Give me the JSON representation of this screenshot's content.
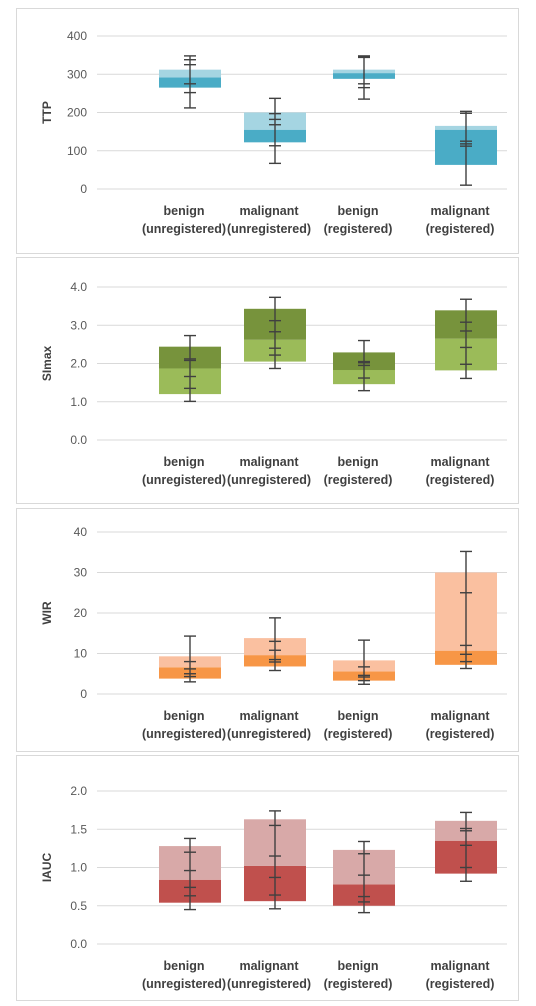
{
  "chart_data": [
    {
      "type": "box",
      "ylabel": "TTP",
      "ylim": [
        0,
        400
      ],
      "yticks": [
        0,
        100,
        200,
        300,
        400
      ],
      "tick_decimals": 0,
      "colors": {
        "lower": "#4aacc6",
        "upper": "#a5d5e2"
      },
      "categories": [
        {
          "line1": "benign",
          "line2": "(unregistered)",
          "q1": 265,
          "median": 292,
          "q3": 312,
          "whisker_low": 212,
          "whisker_high": 348,
          "caps": [
            212,
            252,
            275,
            325,
            338,
            348
          ]
        },
        {
          "line1": "malignant",
          "line2": "(unregistered)",
          "q1": 122,
          "median": 155,
          "q3": 200,
          "whisker_low": 67,
          "whisker_high": 237,
          "caps": [
            67,
            113,
            168,
            182,
            197,
            237
          ]
        },
        {
          "line1": "benign",
          "line2": "(registered)",
          "q1": 288,
          "median": 303,
          "q3": 312,
          "whisker_low": 235,
          "whisker_high": 348,
          "caps": [
            235,
            265,
            275,
            344,
            346,
            348
          ]
        },
        {
          "line1": "malignant",
          "line2": "(registered)",
          "q1": 63,
          "median": 155,
          "q3": 165,
          "whisker_low": 10,
          "whisker_high": 203,
          "caps": [
            10,
            112,
            118,
            125,
            198,
            203
          ]
        }
      ]
    },
    {
      "type": "box",
      "ylabel": "SImax",
      "ylim": [
        0,
        4
      ],
      "yticks": [
        0,
        1,
        2,
        3,
        4
      ],
      "tick_decimals": 1,
      "colors": {
        "lower": "#9bbb59",
        "upper": "#77933c"
      },
      "categories": [
        {
          "line1": "benign",
          "line2": "(unregistered)",
          "q1": 1.2,
          "median": 1.87,
          "q3": 2.44,
          "whisker_low": 1.01,
          "whisker_high": 2.73,
          "caps": [
            1.01,
            1.35,
            1.66,
            2.08,
            2.12,
            2.73
          ]
        },
        {
          "line1": "malignant",
          "line2": "(unregistered)",
          "q1": 2.05,
          "median": 2.62,
          "q3": 3.43,
          "whisker_low": 1.87,
          "whisker_high": 3.73,
          "caps": [
            1.87,
            2.22,
            2.4,
            2.83,
            3.12,
            3.73
          ]
        },
        {
          "line1": "benign",
          "line2": "(registered)",
          "q1": 1.46,
          "median": 1.83,
          "q3": 2.29,
          "whisker_low": 1.29,
          "whisker_high": 2.6,
          "caps": [
            1.29,
            1.62,
            1.95,
            2.02,
            2.05,
            2.6
          ]
        },
        {
          "line1": "malignant",
          "line2": "(registered)",
          "q1": 1.82,
          "median": 2.65,
          "q3": 3.39,
          "whisker_low": 1.61,
          "whisker_high": 3.68,
          "caps": [
            1.61,
            1.98,
            2.42,
            2.85,
            3.08,
            3.68
          ]
        }
      ]
    },
    {
      "type": "box",
      "ylabel": "WIR",
      "ylim": [
        0,
        40
      ],
      "yticks": [
        0,
        10,
        20,
        30,
        40
      ],
      "tick_decimals": 0,
      "colors": {
        "lower": "#f79646",
        "upper": "#fac0a0"
      },
      "categories": [
        {
          "line1": "benign",
          "line2": "(unregistered)",
          "q1": 3.8,
          "median": 6.6,
          "q3": 9.3,
          "whisker_low": 3.0,
          "whisker_high": 14.3,
          "caps": [
            3.0,
            4.3,
            5.0,
            6.2,
            8.0,
            14.3
          ]
        },
        {
          "line1": "malignant",
          "line2": "(unregistered)",
          "q1": 6.8,
          "median": 9.6,
          "q3": 13.8,
          "whisker_low": 5.8,
          "whisker_high": 18.8,
          "caps": [
            5.8,
            7.9,
            8.5,
            10.8,
            13.0,
            18.8
          ]
        },
        {
          "line1": "benign",
          "line2": "(registered)",
          "q1": 3.3,
          "median": 5.6,
          "q3": 8.3,
          "whisker_low": 2.4,
          "whisker_high": 13.3,
          "caps": [
            2.4,
            3.3,
            4.2,
            4.6,
            6.7,
            13.3
          ]
        },
        {
          "line1": "malignant",
          "line2": "(registered)",
          "q1": 7.2,
          "median": 10.7,
          "q3": 30.0,
          "whisker_low": 6.3,
          "whisker_high": 35.2,
          "caps": [
            6.3,
            8.0,
            9.8,
            12.0,
            25.0,
            35.2
          ]
        }
      ]
    },
    {
      "type": "box",
      "ylabel": "IAUC",
      "ylim": [
        0,
        2
      ],
      "yticks": [
        0,
        0.5,
        1,
        1.5,
        2
      ],
      "tick_decimals": 1,
      "colors": {
        "lower": "#c0504d",
        "upper": "#d8a9a8"
      },
      "categories": [
        {
          "line1": "benign",
          "line2": "(unregistered)",
          "q1": 0.54,
          "median": 0.84,
          "q3": 1.28,
          "whisker_low": 0.45,
          "whisker_high": 1.38,
          "caps": [
            0.45,
            0.63,
            0.74,
            0.96,
            1.2,
            1.38
          ]
        },
        {
          "line1": "malignant",
          "line2": "(unregistered)",
          "q1": 0.56,
          "median": 1.02,
          "q3": 1.63,
          "whisker_low": 0.46,
          "whisker_high": 1.74,
          "caps": [
            0.46,
            0.64,
            0.87,
            1.15,
            1.55,
            1.74
          ]
        },
        {
          "line1": "benign",
          "line2": "(registered)",
          "q1": 0.5,
          "median": 0.78,
          "q3": 1.23,
          "whisker_low": 0.41,
          "whisker_high": 1.34,
          "caps": [
            0.41,
            0.55,
            0.62,
            0.9,
            1.18,
            1.34
          ]
        },
        {
          "line1": "malignant",
          "line2": "(registered)",
          "q1": 0.92,
          "median": 1.35,
          "q3": 1.61,
          "whisker_low": 0.82,
          "whisker_high": 1.72,
          "caps": [
            0.82,
            1.0,
            1.29,
            1.48,
            1.51,
            1.72
          ]
        }
      ]
    }
  ]
}
